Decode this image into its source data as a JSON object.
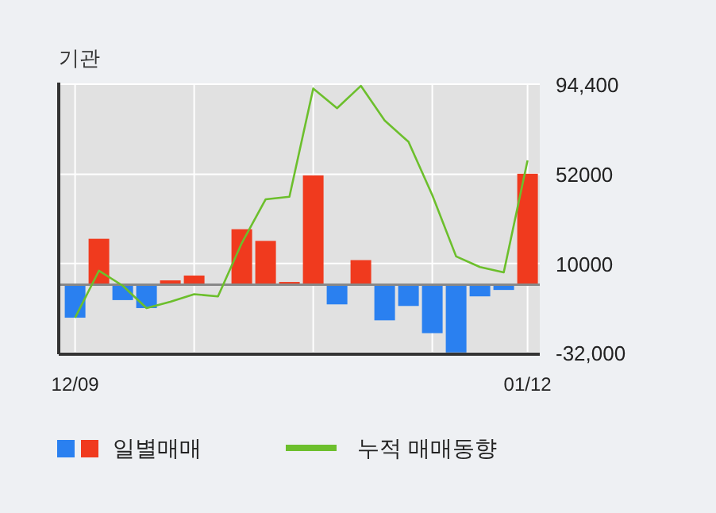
{
  "chart_data": {
    "type": "bar",
    "title": "기관",
    "categories": [
      "12/09",
      null,
      null,
      null,
      null,
      null,
      null,
      null,
      null,
      null,
      null,
      null,
      null,
      null,
      null,
      null,
      null,
      null,
      null,
      "01/12"
    ],
    "series": [
      {
        "name": "일별매매",
        "colors": [
          "#2a80f0",
          "#f03a1e",
          "#2a80f0",
          "#2a80f0",
          "#f03a1e",
          "#f03a1e",
          "#f03a1e",
          "#f03a1e",
          "#f03a1e",
          "#f03a1e",
          "#f03a1e",
          "#2a80f0",
          "#f03a1e",
          "#2a80f0",
          "#2a80f0",
          "#2a80f0",
          "#2a80f0",
          "#2a80f0",
          "#2a80f0",
          "#f03a1e"
        ],
        "values": [
          -15560,
          21600,
          -7280,
          -11040,
          2000,
          4270,
          0,
          26100,
          20600,
          1250,
          51450,
          -9290,
          11550,
          -16800,
          -10040,
          -22840,
          -31900,
          -5520,
          -2510,
          52200
        ]
      },
      {
        "name": "누적 매매동향",
        "type": "line",
        "color": "#6cbf2c",
        "values": [
          -15560,
          6530,
          -500,
          -11040,
          -8030,
          -4520,
          -5520,
          19580,
          40160,
          41400,
          92370,
          83080,
          93620,
          77300,
          67270,
          42170,
          13300,
          8280,
          5770,
          58480
        ]
      }
    ],
    "ylim": [
      -32000,
      94400
    ],
    "yticks": [
      {
        "value": 94400,
        "label": "94,400"
      },
      52000,
      10000,
      {
        "value": -32000,
        "label": "-32,000"
      }
    ],
    "grid": true,
    "legend": "bottom left"
  }
}
